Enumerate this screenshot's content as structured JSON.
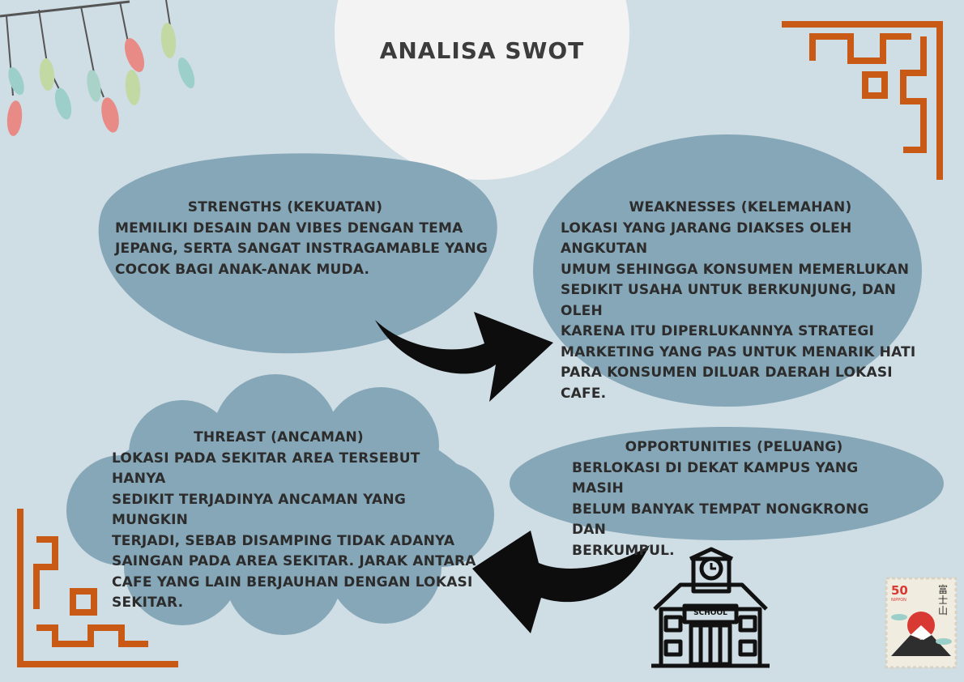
{
  "title": "ANALISA SWOT",
  "strengths": {
    "heading": "STRENGTHS (KEKUATAN)",
    "body": " MEMILIKI DESAIN DAN VIBES DENGAN TEMA\nJEPANG, SERTA SANGAT INSTRAGAMABLE YANG\nCOCOK BAGI ANAK-ANAK MUDA."
  },
  "weaknesses": {
    "heading": "WEAKNESSES (KELEMAHAN)",
    "body": " LOKASI YANG JARANG DIAKSES OLEH ANGKUTAN\nUMUM SEHINGGA KONSUMEN MEMERLUKAN\nSEDIKIT USAHA UNTUK BERKUNJUNG, DAN OLEH\nKARENA ITU DIPERLUKANNYA STRATEGI\nMARKETING YANG PAS UNTUK MENARIK HATI\nPARA KONSUMEN DILUAR DAERAH LOKASI CAFE."
  },
  "threats": {
    "heading": "THREAST (ANCAMAN)",
    "body": "LOKASI PADA SEKITAR AREA TERSEBUT HANYA\nSEDIKIT TERJADINYA ANCAMAN YANG MUNGKIN\nTERJADI, SEBAB DISAMPING TIDAK ADANYA\nSAINGAN PADA AREA SEKITAR. JARAK ANTARA\nCAFE YANG LAIN BERJAUHAN DENGAN LOKASI\nSEKITAR."
  },
  "opportunities": {
    "heading": "OPPORTUNITIES (PELUANG)",
    "body": "BERLOKASI DI DEKAT KAMPUS YANG MASIH\nBELUM BANYAK TEMPAT NONGKRONG DAN\nBERKUMPUL."
  },
  "school_label": "SCHOOL",
  "stamp": {
    "value": "50",
    "small": "NIPPON",
    "kanji": "富士山"
  },
  "colors": {
    "background": "#cfdde4",
    "bubble": "#86a7b8",
    "frame": "#c95a16",
    "arrow": "#0d0d0d"
  }
}
